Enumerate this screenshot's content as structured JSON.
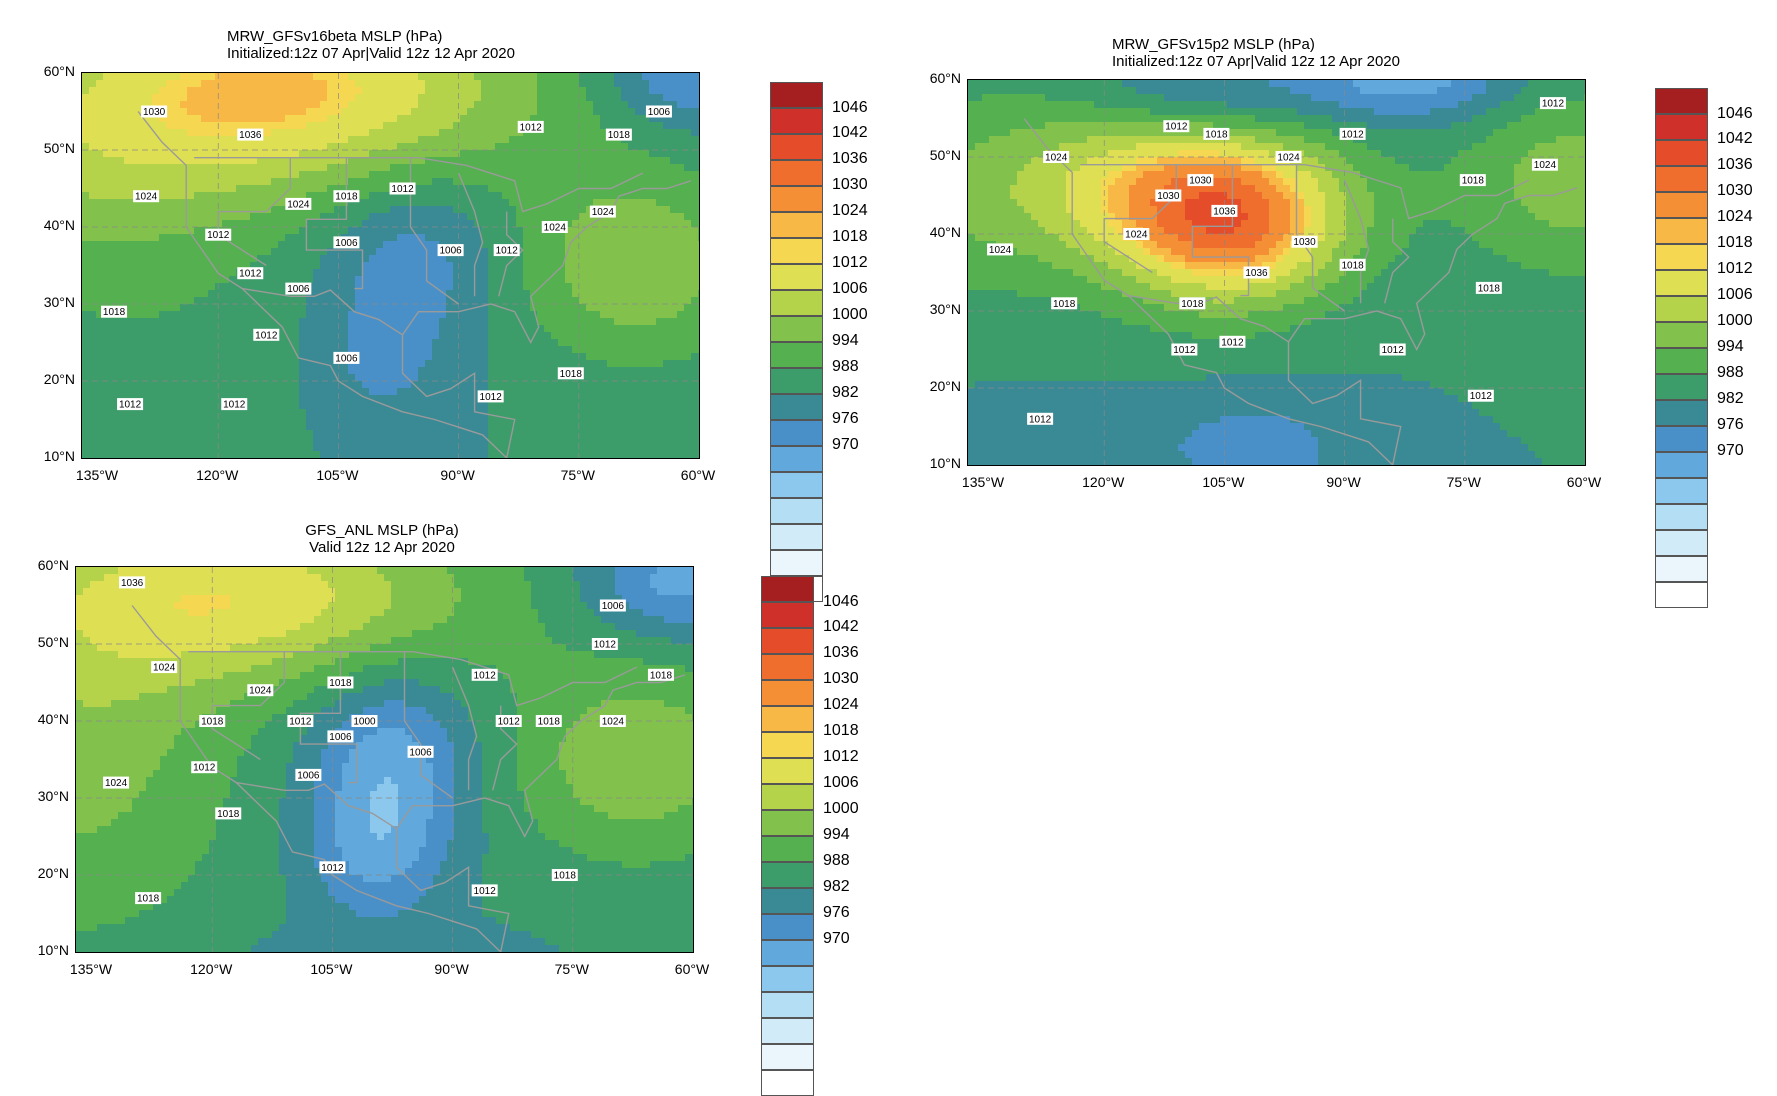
{
  "colors": [
    "#ffffff",
    "#eaf6fb",
    "#d1ecf8",
    "#b3def4",
    "#8cc8ee",
    "#61a9dc",
    "#4a90c8",
    "#3a8a95",
    "#3d9d6a",
    "#55b14f",
    "#82c14b",
    "#b4d34a",
    "#dfdf53",
    "#f6d751",
    "#f7b845",
    "#f48f36",
    "#ef6e2e",
    "#e44c2a",
    "#d0302a",
    "#a51e20"
  ],
  "colorbar_labels": [
    "1046",
    "1042",
    "1036",
    "1030",
    "1024",
    "1018",
    "1012",
    "1006",
    "1000",
    "994",
    "988",
    "982",
    "976",
    "970"
  ],
  "lon_ticks": [
    "135°W",
    "120°W",
    "105°W",
    "90°W",
    "75°W",
    "60°W"
  ],
  "lat_ticks": [
    "60°N",
    "50°N",
    "40°N",
    "30°N",
    "20°N",
    "10°N"
  ],
  "panels": [
    {
      "id": "gfsv16",
      "title_line1": "MRW_GFSv16beta MSLP (hPa)",
      "title_line2": "Initialized:12z 07 Apr|Valid 12z 12 Apr 2020",
      "field": {
        "background": 1012,
        "features": [
          {
            "lon": -110,
            "lat": 58,
            "value": 1042,
            "sx": 22,
            "sy": 9
          },
          {
            "lon": -138,
            "lat": 47,
            "value": 1026,
            "sx": 20,
            "sy": 12
          },
          {
            "lon": -68,
            "lat": 35,
            "value": 1029,
            "sx": 11,
            "sy": 9
          },
          {
            "lon": -96,
            "lat": 36,
            "value": 1001,
            "sx": 8,
            "sy": 8
          },
          {
            "lon": -100,
            "lat": 22,
            "value": 1005,
            "sx": 6,
            "sy": 6
          },
          {
            "lon": -62,
            "lat": 60,
            "value": 998,
            "sx": 7,
            "sy": 5
          },
          {
            "lon": -125,
            "lat": 22,
            "value": 1015,
            "sx": 14,
            "sy": 8
          }
        ]
      },
      "contour_labels": [
        {
          "lon": -128,
          "lat": 55,
          "text": "1030"
        },
        {
          "lon": -116,
          "lat": 52,
          "text": "1036"
        },
        {
          "lon": -81,
          "lat": 53,
          "text": "1012"
        },
        {
          "lon": -70,
          "lat": 52,
          "text": "1018"
        },
        {
          "lon": -65,
          "lat": 55,
          "text": "1006"
        },
        {
          "lon": -129,
          "lat": 44,
          "text": "1024"
        },
        {
          "lon": -110,
          "lat": 43,
          "text": "1024"
        },
        {
          "lon": -104,
          "lat": 44,
          "text": "1018"
        },
        {
          "lon": -97,
          "lat": 45,
          "text": "1012"
        },
        {
          "lon": -120,
          "lat": 39,
          "text": "1012"
        },
        {
          "lon": -104,
          "lat": 38,
          "text": "1006"
        },
        {
          "lon": -116,
          "lat": 34,
          "text": "1012"
        },
        {
          "lon": -110,
          "lat": 32,
          "text": "1006"
        },
        {
          "lon": -91,
          "lat": 37,
          "text": "1006"
        },
        {
          "lon": -84,
          "lat": 37,
          "text": "1012"
        },
        {
          "lon": -78,
          "lat": 40,
          "text": "1024"
        },
        {
          "lon": -72,
          "lat": 42,
          "text": "1024"
        },
        {
          "lon": -133,
          "lat": 29,
          "text": "1018"
        },
        {
          "lon": -114,
          "lat": 26,
          "text": "1012"
        },
        {
          "lon": -104,
          "lat": 23,
          "text": "1006"
        },
        {
          "lon": -76,
          "lat": 21,
          "text": "1018"
        },
        {
          "lon": -86,
          "lat": 18,
          "text": "1012"
        },
        {
          "lon": -131,
          "lat": 17,
          "text": "1012"
        },
        {
          "lon": -118,
          "lat": 17,
          "text": "1012"
        }
      ]
    },
    {
      "id": "gfsv15",
      "title_line1": "MRW_GFSv15p2 MSLP (hPa)",
      "title_line2": "Initialized:12z 07 Apr|Valid 12z 12 Apr 2020",
      "field": {
        "background": 1012,
        "features": [
          {
            "lon": -104,
            "lat": 40,
            "value": 1045,
            "sx": 10,
            "sy": 7
          },
          {
            "lon": -110,
            "lat": 47,
            "value": 1034,
            "sx": 14,
            "sy": 7
          },
          {
            "lon": -135,
            "lat": 45,
            "value": 1023,
            "sx": 18,
            "sy": 10
          },
          {
            "lon": -62,
            "lat": 47,
            "value": 1027,
            "sx": 10,
            "sy": 9
          },
          {
            "lon": -108,
            "lat": 58,
            "value": 1001,
            "sx": 10,
            "sy": 4
          },
          {
            "lon": -82,
            "lat": 60,
            "value": 996,
            "sx": 10,
            "sy": 4
          },
          {
            "lon": -100,
            "lat": 12,
            "value": 1004,
            "sx": 8,
            "sy": 5
          },
          {
            "lon": -125,
            "lat": 13,
            "value": 1008,
            "sx": 16,
            "sy": 4
          }
        ]
      },
      "contour_labels": [
        {
          "lon": -126,
          "lat": 50,
          "text": "1024"
        },
        {
          "lon": -108,
          "lat": 47,
          "text": "1030"
        },
        {
          "lon": -112,
          "lat": 45,
          "text": "1030"
        },
        {
          "lon": -97,
          "lat": 50,
          "text": "1024"
        },
        {
          "lon": -111,
          "lat": 54,
          "text": "1012"
        },
        {
          "lon": -106,
          "lat": 53,
          "text": "1018"
        },
        {
          "lon": -89,
          "lat": 53,
          "text": "1012"
        },
        {
          "lon": -64,
          "lat": 57,
          "text": "1012"
        },
        {
          "lon": -74,
          "lat": 47,
          "text": "1018"
        },
        {
          "lon": -65,
          "lat": 49,
          "text": "1024"
        },
        {
          "lon": -133,
          "lat": 38,
          "text": "1024"
        },
        {
          "lon": -116,
          "lat": 40,
          "text": "1024"
        },
        {
          "lon": -105,
          "lat": 43,
          "text": "1036"
        },
        {
          "lon": -95,
          "lat": 39,
          "text": "1030"
        },
        {
          "lon": -101,
          "lat": 35,
          "text": "1036"
        },
        {
          "lon": -89,
          "lat": 36,
          "text": "1018"
        },
        {
          "lon": -72,
          "lat": 33,
          "text": "1018"
        },
        {
          "lon": -109,
          "lat": 31,
          "text": "1018"
        },
        {
          "lon": -125,
          "lat": 31,
          "text": "1018"
        },
        {
          "lon": -110,
          "lat": 25,
          "text": "1012"
        },
        {
          "lon": -104,
          "lat": 26,
          "text": "1012"
        },
        {
          "lon": -84,
          "lat": 25,
          "text": "1012"
        },
        {
          "lon": -73,
          "lat": 19,
          "text": "1012"
        },
        {
          "lon": -128,
          "lat": 16,
          "text": "1012"
        }
      ]
    },
    {
      "id": "gfsanl",
      "title_line1": "GFS_ANL MSLP (hPa)",
      "title_line2": "Valid 12z 12 Apr 2020",
      "field": {
        "background": 1013,
        "features": [
          {
            "lon": -115,
            "lat": 56,
            "value": 1039,
            "sx": 20,
            "sy": 8
          },
          {
            "lon": -137,
            "lat": 38,
            "value": 1027,
            "sx": 14,
            "sy": 18
          },
          {
            "lon": -67,
            "lat": 35,
            "value": 1029,
            "sx": 11,
            "sy": 9
          },
          {
            "lon": -98,
            "lat": 34,
            "value": 995,
            "sx": 7,
            "sy": 9
          },
          {
            "lon": -100,
            "lat": 22,
            "value": 1003,
            "sx": 6,
            "sy": 6
          },
          {
            "lon": -62,
            "lat": 58,
            "value": 997,
            "sx": 8,
            "sy": 5
          },
          {
            "lon": -100,
            "lat": 10,
            "value": 1010,
            "sx": 18,
            "sy": 3
          }
        ]
      },
      "contour_labels": [
        {
          "lon": -130,
          "lat": 58,
          "text": "1036"
        },
        {
          "lon": -126,
          "lat": 47,
          "text": "1024"
        },
        {
          "lon": -114,
          "lat": 44,
          "text": "1024"
        },
        {
          "lon": -104,
          "lat": 45,
          "text": "1018"
        },
        {
          "lon": -86,
          "lat": 46,
          "text": "1012"
        },
        {
          "lon": -70,
          "lat": 55,
          "text": "1006"
        },
        {
          "lon": -71,
          "lat": 50,
          "text": "1012"
        },
        {
          "lon": -64,
          "lat": 46,
          "text": "1018"
        },
        {
          "lon": -120,
          "lat": 40,
          "text": "1018"
        },
        {
          "lon": -109,
          "lat": 40,
          "text": "1012"
        },
        {
          "lon": -101,
          "lat": 40,
          "text": "1000"
        },
        {
          "lon": -104,
          "lat": 38,
          "text": "1006"
        },
        {
          "lon": -94,
          "lat": 36,
          "text": "1006"
        },
        {
          "lon": -83,
          "lat": 40,
          "text": "1012"
        },
        {
          "lon": -78,
          "lat": 40,
          "text": "1018"
        },
        {
          "lon": -70,
          "lat": 40,
          "text": "1024"
        },
        {
          "lon": -121,
          "lat": 34,
          "text": "1012"
        },
        {
          "lon": -108,
          "lat": 33,
          "text": "1006"
        },
        {
          "lon": -132,
          "lat": 32,
          "text": "1024"
        },
        {
          "lon": -118,
          "lat": 28,
          "text": "1018"
        },
        {
          "lon": -105,
          "lat": 21,
          "text": "1012"
        },
        {
          "lon": -86,
          "lat": 18,
          "text": "1012"
        },
        {
          "lon": -76,
          "lat": 20,
          "text": "1018"
        },
        {
          "lon": -128,
          "lat": 17,
          "text": "1018"
        }
      ]
    }
  ]
}
